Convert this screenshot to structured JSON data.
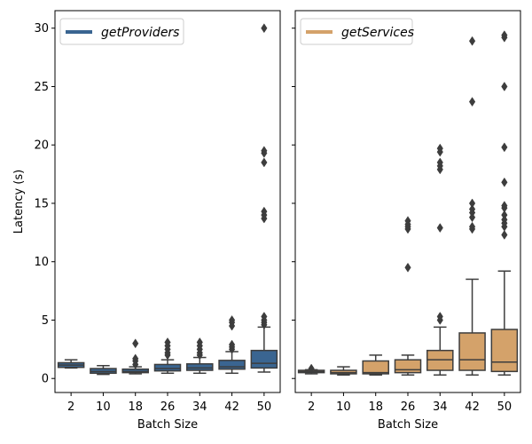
{
  "chart_data": [
    {
      "type": "box",
      "xlabel": "Batch Size",
      "ylabel": "Latency (s)",
      "ylim": [
        -1.2,
        31.5
      ],
      "yticks": [
        0,
        5,
        10,
        15,
        20,
        25,
        30
      ],
      "legend": {
        "label": "getProviders",
        "position": "top-left"
      },
      "color": "#3a6591",
      "categories": [
        "2",
        "10",
        "18",
        "26",
        "34",
        "42",
        "50"
      ],
      "boxes": [
        {
          "category": "2",
          "whislo": 0.9,
          "q1": 0.95,
          "median": 1.15,
          "q3": 1.35,
          "whishi": 1.6,
          "fliers": []
        },
        {
          "category": "10",
          "whislo": 0.35,
          "q1": 0.45,
          "median": 0.6,
          "q3": 0.85,
          "whishi": 1.1,
          "fliers": []
        },
        {
          "category": "18",
          "whislo": 0.4,
          "q1": 0.5,
          "median": 0.6,
          "q3": 0.8,
          "whishi": 1.0,
          "fliers": [
            1.2,
            1.5,
            1.7,
            3.0
          ]
        },
        {
          "category": "26",
          "whislo": 0.45,
          "q1": 0.65,
          "median": 0.85,
          "q3": 1.2,
          "whishi": 1.6,
          "fliers": [
            2.0,
            2.2,
            2.5,
            2.8,
            3.1
          ]
        },
        {
          "category": "34",
          "whislo": 0.45,
          "q1": 0.7,
          "median": 0.9,
          "q3": 1.25,
          "whishi": 1.8,
          "fliers": [
            2.0,
            2.2,
            2.5,
            2.8,
            3.1
          ]
        },
        {
          "category": "42",
          "whislo": 0.45,
          "q1": 0.8,
          "median": 1.0,
          "q3": 1.55,
          "whishi": 2.3,
          "fliers": [
            2.5,
            2.7,
            2.9,
            4.5,
            4.8,
            5.0
          ]
        },
        {
          "category": "50",
          "whislo": 0.55,
          "q1": 0.9,
          "median": 1.3,
          "q3": 2.4,
          "whishi": 4.4,
          "fliers": [
            4.6,
            4.8,
            5.0,
            5.3,
            13.7,
            14.0,
            14.3,
            18.5,
            19.3,
            19.5,
            30.0
          ]
        }
      ]
    },
    {
      "type": "box",
      "xlabel": "Batch Size",
      "ylabel": "",
      "ylim": [
        -1.2,
        31.5
      ],
      "yticks": [
        0,
        5,
        10,
        15,
        20,
        25,
        30
      ],
      "legend": {
        "label": "getServices",
        "position": "top-left"
      },
      "color": "#d4a26a",
      "categories": [
        "2",
        "10",
        "18",
        "26",
        "34",
        "42",
        "50"
      ],
      "boxes": [
        {
          "category": "2",
          "whislo": 0.4,
          "q1": 0.5,
          "median": 0.6,
          "q3": 0.7,
          "whishi": 0.75,
          "fliers": [
            0.85
          ]
        },
        {
          "category": "10",
          "whislo": 0.3,
          "q1": 0.4,
          "median": 0.5,
          "q3": 0.7,
          "whishi": 1.0,
          "fliers": []
        },
        {
          "category": "18",
          "whislo": 0.3,
          "q1": 0.4,
          "median": 0.5,
          "q3": 1.5,
          "whishi": 2.0,
          "fliers": []
        },
        {
          "category": "26",
          "whislo": 0.3,
          "q1": 0.5,
          "median": 0.75,
          "q3": 1.6,
          "whishi": 2.0,
          "fliers": [
            9.5,
            12.8,
            13.0,
            13.2,
            13.5
          ]
        },
        {
          "category": "34",
          "whislo": 0.3,
          "q1": 0.7,
          "median": 1.6,
          "q3": 2.4,
          "whishi": 4.4,
          "fliers": [
            5.0,
            5.3,
            12.9,
            17.9,
            18.2,
            18.5,
            19.4,
            19.7
          ]
        },
        {
          "category": "42",
          "whislo": 0.3,
          "q1": 0.7,
          "median": 1.6,
          "q3": 3.9,
          "whishi": 8.5,
          "fliers": [
            12.8,
            13.0,
            13.8,
            14.2,
            14.5,
            15.0,
            23.7,
            28.9
          ]
        },
        {
          "category": "50",
          "whislo": 0.3,
          "q1": 0.6,
          "median": 1.4,
          "q3": 4.2,
          "whishi": 9.2,
          "fliers": [
            12.3,
            13.0,
            13.3,
            13.6,
            14.0,
            14.6,
            14.8,
            16.8,
            19.8,
            25.0,
            29.2,
            29.4
          ]
        }
      ]
    }
  ]
}
